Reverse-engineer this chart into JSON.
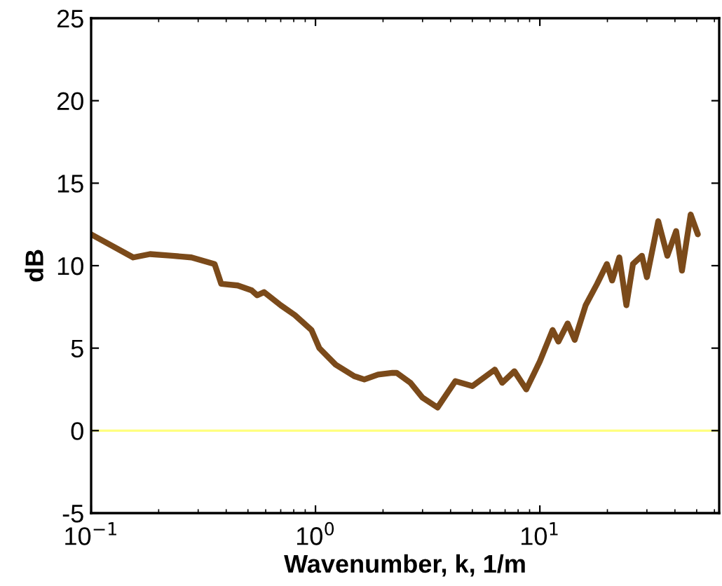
{
  "chart_data": {
    "type": "line",
    "xlabel": "Wavenumber, k, 1/m",
    "ylabel": "dB",
    "log": "x",
    "xlim": [
      0.1,
      63
    ],
    "xticks": [
      {
        "value": 0.1,
        "label": "10$^{−1}$"
      },
      {
        "value": 1,
        "label": "10$^{0}$"
      },
      {
        "value": 10,
        "label": "10$^{1}$"
      }
    ],
    "ylim": [
      -5,
      25
    ],
    "yticks": [
      -5,
      0,
      5,
      10,
      15,
      20,
      25
    ],
    "grid": false,
    "marker": "none",
    "line_style": "solid",
    "ref_lines": [
      {
        "axis": "y",
        "value": 0,
        "color": "#ffff80"
      }
    ],
    "series": [
      {
        "color": "#7b4a1a",
        "x": [
          0.1,
          0.154,
          0.183,
          0.23,
          0.28,
          0.355,
          0.38,
          0.45,
          0.52,
          0.55,
          0.59,
          0.7,
          0.81,
          0.96,
          1.04,
          1.23,
          1.49,
          1.65,
          1.9,
          2.2,
          2.3,
          2.65,
          3.0,
          3.5,
          4.2,
          5.0,
          6.3,
          6.8,
          7.7,
          8.7,
          10,
          11.4,
          12.1,
          13.3,
          14.3,
          16,
          18,
          19.9,
          21,
          22.6,
          24.3,
          26,
          28.5,
          30,
          33.7,
          37,
          40.5,
          43,
          47,
          50.6
        ],
        "values": [
          11.9,
          10.5,
          10.7,
          10.6,
          10.5,
          10.1,
          8.9,
          8.8,
          8.5,
          8.2,
          8.4,
          7.6,
          7.0,
          6.1,
          5.0,
          4.0,
          3.3,
          3.1,
          3.4,
          3.5,
          3.5,
          2.9,
          2.0,
          1.4,
          3.0,
          2.7,
          3.7,
          2.9,
          3.6,
          2.5,
          4.2,
          6.1,
          5.4,
          6.5,
          5.5,
          7.6,
          8.9,
          10.1,
          9.1,
          10.5,
          7.6,
          10.1,
          10.6,
          9.3,
          12.7,
          10.6,
          12.1,
          9.7,
          13.1,
          11.9
        ]
      }
    ]
  }
}
